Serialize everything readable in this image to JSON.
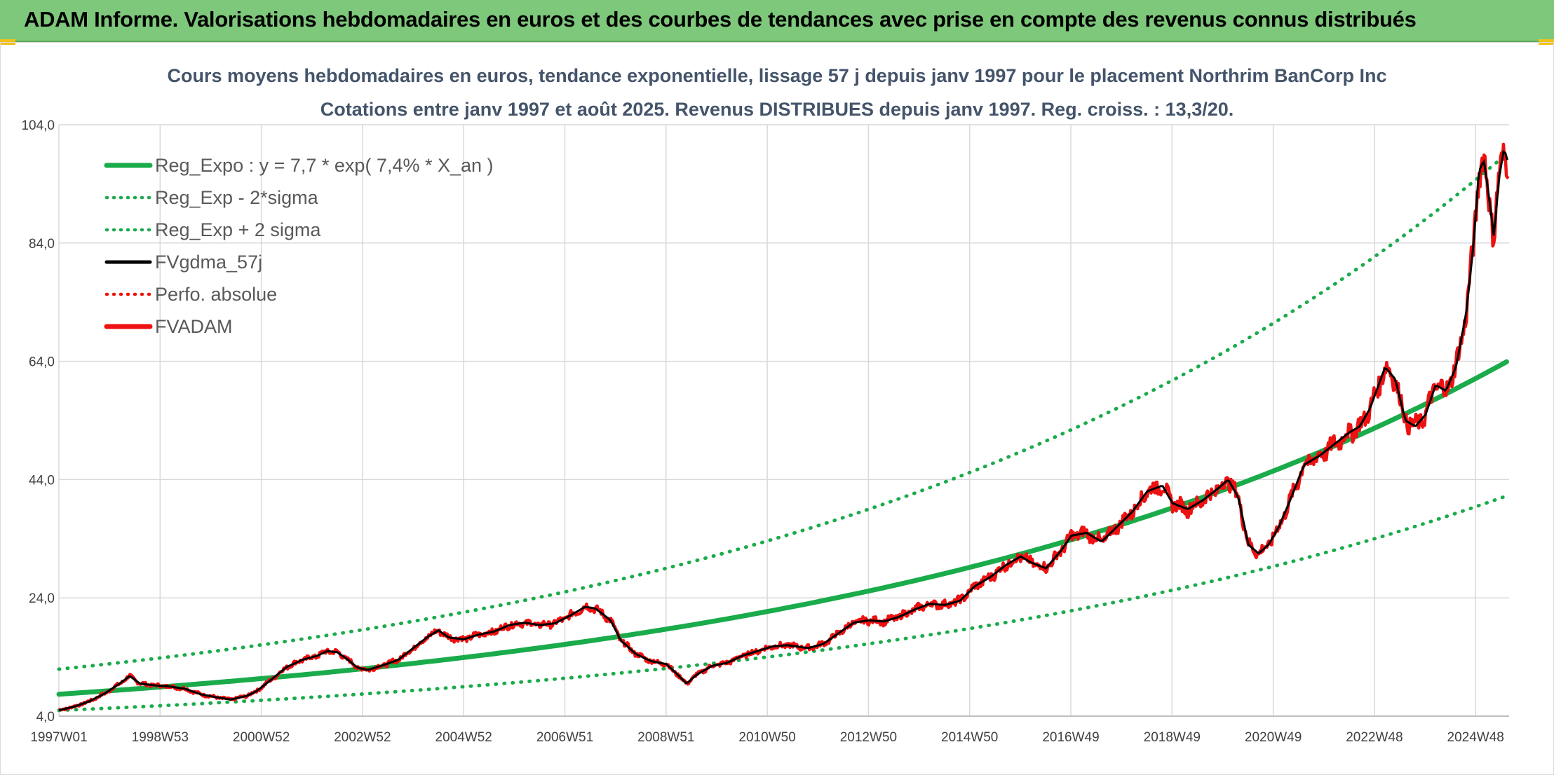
{
  "banner": {
    "title": "ADAM Informe. Valorisations hebdomadaires en euros et des courbes de tendances avec prise en compte des revenus connus distribués"
  },
  "colors": {
    "banner_bg": "#7ec87b",
    "trend_green": "#1aab4b",
    "fvadam_red": "#ee1111",
    "smooth_black": "#000000",
    "grid": "#d9d9d9"
  },
  "chart_data": {
    "type": "line",
    "title": "Cours moyens hebdomadaires en euros, tendance exponentielle, lissage 57 j depuis janv 1997 pour le placement Northrim BanCorp Inc",
    "subtitle": "Cotations entre janv 1997 et août 2025. Revenus DISTRIBUES depuis janv 1997. Reg. croiss. : 13,3/20.",
    "xlabel": "",
    "ylabel": "",
    "x_tick_labels": [
      "1997W01",
      "1998W53",
      "2000W52",
      "2002W52",
      "2004W52",
      "2006W51",
      "2008W51",
      "2010W50",
      "2012W50",
      "2014W50",
      "2016W49",
      "2018W49",
      "2020W49",
      "2022W48",
      "2024W48"
    ],
    "x_range_years": [
      1997.0,
      2025.65
    ],
    "ylim": [
      4,
      104
    ],
    "y_ticks": [
      4,
      24,
      44,
      64,
      84,
      104
    ],
    "y_tick_labels": [
      "4,0",
      "24,0",
      "44,0",
      "64,0",
      "84,0",
      "104,0"
    ],
    "grid": true,
    "legend_position": "top-left",
    "regression": {
      "a": 7.7,
      "rate": 0.074,
      "two_sigma_factor": 1.55
    },
    "series": [
      {
        "name": "Reg_Expo : y = 7,7 * exp( 7,4% *  X_an )",
        "style": "solid",
        "color": "#1aab4b",
        "kind": "reg"
      },
      {
        "name": "Reg_Exp - 2*sigma",
        "style": "dotted",
        "color": "#1aab4b",
        "kind": "reg_low"
      },
      {
        "name": "Reg_Exp + 2 sigma",
        "style": "dotted",
        "color": "#1aab4b",
        "kind": "reg_high"
      },
      {
        "name": "FVgdma_57j",
        "style": "solid",
        "color": "#000000",
        "kind": "smooth"
      },
      {
        "name": "Perfo. absolue",
        "style": "dotted",
        "color": "#ee1111",
        "kind": "perfo"
      },
      {
        "name": "FVADAM",
        "style": "solid",
        "color": "#ee1111",
        "kind": "price",
        "points": [
          [
            1997.0,
            5.0
          ],
          [
            1997.3,
            5.6
          ],
          [
            1997.6,
            6.5
          ],
          [
            1997.9,
            7.8
          ],
          [
            1998.2,
            9.5
          ],
          [
            1998.4,
            10.8
          ],
          [
            1998.6,
            9.5
          ],
          [
            1998.9,
            9.2
          ],
          [
            1999.2,
            9.0
          ],
          [
            1999.5,
            8.6
          ],
          [
            1999.8,
            7.7
          ],
          [
            2000.1,
            7.2
          ],
          [
            2000.4,
            6.8
          ],
          [
            2000.7,
            7.4
          ],
          [
            2000.9,
            8.2
          ],
          [
            2001.2,
            10.2
          ],
          [
            2001.5,
            12.3
          ],
          [
            2001.8,
            13.5
          ],
          [
            2002.1,
            14.2
          ],
          [
            2002.3,
            15.0
          ],
          [
            2002.5,
            14.8
          ],
          [
            2002.7,
            13.6
          ],
          [
            2002.9,
            12.2
          ],
          [
            2003.1,
            11.8
          ],
          [
            2003.4,
            12.6
          ],
          [
            2003.7,
            13.5
          ],
          [
            2004.0,
            15.5
          ],
          [
            2004.3,
            17.5
          ],
          [
            2004.5,
            18.5
          ],
          [
            2004.7,
            17.3
          ],
          [
            2005.0,
            17.0
          ],
          [
            2005.3,
            17.8
          ],
          [
            2005.6,
            18.3
          ],
          [
            2005.9,
            19.4
          ],
          [
            2006.2,
            19.8
          ],
          [
            2006.5,
            19.4
          ],
          [
            2006.8,
            19.7
          ],
          [
            2007.1,
            21.0
          ],
          [
            2007.4,
            22.5
          ],
          [
            2007.6,
            22.2
          ],
          [
            2007.9,
            20.2
          ],
          [
            2008.1,
            16.8
          ],
          [
            2008.4,
            14.5
          ],
          [
            2008.7,
            13.3
          ],
          [
            2009.0,
            12.8
          ],
          [
            2009.2,
            11.2
          ],
          [
            2009.4,
            9.5
          ],
          [
            2009.6,
            11.0
          ],
          [
            2009.9,
            12.5
          ],
          [
            2010.2,
            13.0
          ],
          [
            2010.5,
            14.2
          ],
          [
            2010.8,
            15.0
          ],
          [
            2011.1,
            15.8
          ],
          [
            2011.4,
            16.0
          ],
          [
            2011.8,
            15.5
          ],
          [
            2012.1,
            16.2
          ],
          [
            2012.4,
            18.0
          ],
          [
            2012.7,
            19.8
          ],
          [
            2013.0,
            20.2
          ],
          [
            2013.3,
            20.0
          ],
          [
            2013.6,
            20.8
          ],
          [
            2013.9,
            22.0
          ],
          [
            2014.2,
            23.0
          ],
          [
            2014.5,
            22.8
          ],
          [
            2014.8,
            23.5
          ],
          [
            2015.1,
            26.0
          ],
          [
            2015.4,
            27.5
          ],
          [
            2015.7,
            29.5
          ],
          [
            2016.0,
            31.0
          ],
          [
            2016.2,
            30.0
          ],
          [
            2016.5,
            29.0
          ],
          [
            2016.8,
            32.0
          ],
          [
            2017.0,
            34.5
          ],
          [
            2017.3,
            35.0
          ],
          [
            2017.6,
            33.5
          ],
          [
            2017.9,
            36.0
          ],
          [
            2018.2,
            38.5
          ],
          [
            2018.5,
            42.0
          ],
          [
            2018.8,
            43.0
          ],
          [
            2019.0,
            40.0
          ],
          [
            2019.3,
            39.0
          ],
          [
            2019.6,
            40.5
          ],
          [
            2019.9,
            42.5
          ],
          [
            2020.1,
            44.0
          ],
          [
            2020.3,
            41.0
          ],
          [
            2020.5,
            33.0
          ],
          [
            2020.7,
            31.5
          ],
          [
            2020.9,
            33.0
          ],
          [
            2021.1,
            36.0
          ],
          [
            2021.3,
            40.0
          ],
          [
            2021.6,
            46.5
          ],
          [
            2021.9,
            48.0
          ],
          [
            2022.2,
            50.0
          ],
          [
            2022.5,
            52.0
          ],
          [
            2022.7,
            53.0
          ],
          [
            2022.9,
            56.0
          ],
          [
            2023.2,
            63.0
          ],
          [
            2023.4,
            61.0
          ],
          [
            2023.6,
            54.0
          ],
          [
            2023.8,
            53.0
          ],
          [
            2024.0,
            55.0
          ],
          [
            2024.2,
            60.0
          ],
          [
            2024.4,
            59.0
          ],
          [
            2024.6,
            63.0
          ],
          [
            2024.8,
            72.0
          ],
          [
            2024.95,
            84.0
          ],
          [
            2025.05,
            96.0
          ],
          [
            2025.15,
            98.0
          ],
          [
            2025.25,
            92.0
          ],
          [
            2025.35,
            85.0
          ],
          [
            2025.45,
            95.0
          ],
          [
            2025.55,
            100.0
          ],
          [
            2025.65,
            97.0
          ]
        ]
      }
    ]
  }
}
